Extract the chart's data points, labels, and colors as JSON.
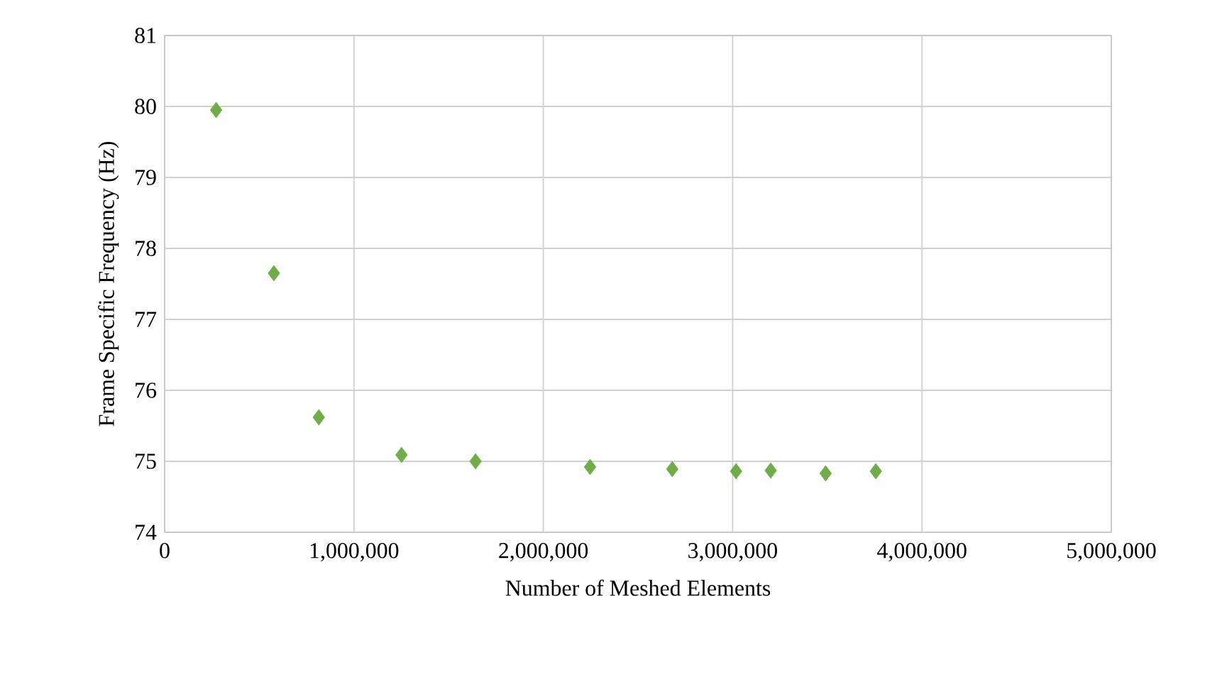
{
  "chart_data": {
    "type": "scatter",
    "xlabel": "Number of Meshed Elements",
    "ylabel": "Frame Specific Frequency (Hz)",
    "x": [
      272000,
      577000,
      814000,
      1251000,
      1642000,
      2247000,
      2681000,
      3018000,
      3201000,
      3491000,
      3756000
    ],
    "series": [
      {
        "color": "#70ad47",
        "values": [
          79.95,
          77.65,
          75.62,
          75.09,
          75.0,
          74.92,
          74.89,
          74.86,
          74.87,
          74.83,
          74.86
        ]
      }
    ],
    "xlim": [
      0,
      5000000
    ],
    "xticks": [
      0,
      {
        "value": 1000000,
        "label": "1,000,000"
      },
      {
        "value": 2000000,
        "label": "2,000,000"
      },
      {
        "value": 3000000,
        "label": "3,000,000"
      },
      {
        "value": 4000000,
        "label": "4,000,000"
      },
      {
        "value": 5000000,
        "label": "5,000,000"
      }
    ],
    "ylim": [
      74,
      81
    ],
    "yticks": [
      74,
      75,
      76,
      77,
      78,
      79,
      80,
      81
    ],
    "grid": true,
    "marker": "diamond"
  }
}
